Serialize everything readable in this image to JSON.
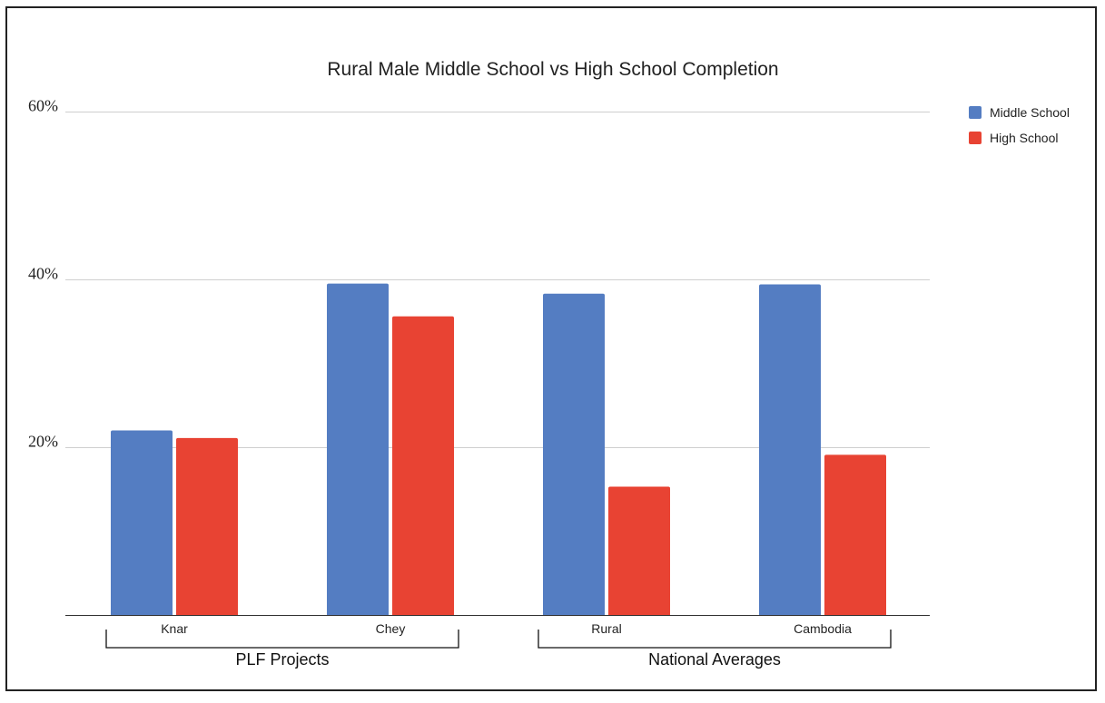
{
  "chart_data": {
    "type": "bar",
    "title": "Rural Male Middle School vs High School Completion",
    "categories": [
      "Knar",
      "Chey",
      "Rural",
      "Cambodia"
    ],
    "series": [
      {
        "name": "Middle School",
        "color": "#547dc2",
        "values": [
          22,
          39.5,
          38.3,
          39.4
        ]
      },
      {
        "name": "High School",
        "color": "#e84333",
        "values": [
          21.1,
          35.6,
          15.3,
          19.1
        ]
      }
    ],
    "ylim": [
      0,
      60
    ],
    "yticks": [
      {
        "value": 20,
        "label": "20%"
      },
      {
        "value": 40,
        "label": "40%"
      },
      {
        "value": 60,
        "label": "60%"
      }
    ],
    "grid": true,
    "legend_position": "right",
    "groups": [
      {
        "label": "PLF Projects",
        "categories": [
          "Knar",
          "Chey"
        ]
      },
      {
        "label": "National Averages",
        "categories": [
          "Rural",
          "Cambodia"
        ]
      }
    ]
  }
}
